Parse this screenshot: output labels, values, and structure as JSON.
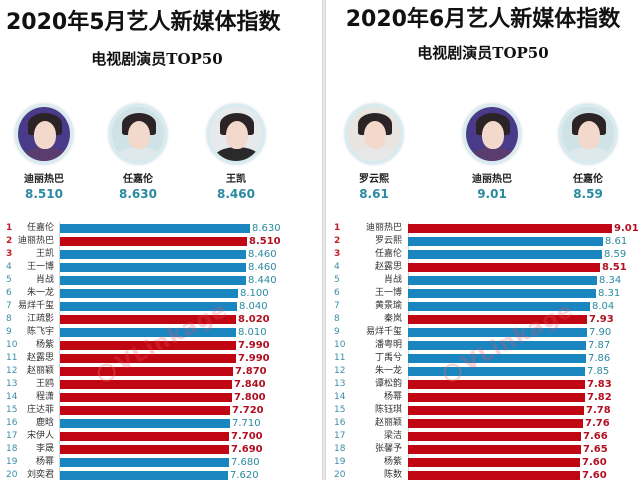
{
  "left_panel": {
    "title": "2020年5月艺人新媒体指数",
    "subtitle": "电视剧演员TOP50",
    "top3": [
      {
        "name": "迪丽热巴",
        "score": "8.510",
        "position": "left"
      },
      {
        "name": "任嘉伦",
        "score": "8.630",
        "position": "center"
      },
      {
        "name": "王凯",
        "score": "8.460",
        "position": "right"
      }
    ],
    "watermark": "VLinkage"
  },
  "right_panel": {
    "title": "2020年6月艺人新媒体指数",
    "subtitle": "电视剧演员TOP50",
    "top3": [
      {
        "name": "罗云熙",
        "score": "8.61",
        "position": "left"
      },
      {
        "name": "迪丽热巴",
        "score": "9.01",
        "position": "center"
      },
      {
        "name": "任嘉伦",
        "score": "8.59",
        "position": "right"
      }
    ],
    "watermark": "VLinkage"
  },
  "colors": {
    "blue_bar": "#1a86c0",
    "red_bar": "#c00612",
    "score_teal": "#2a8aa0",
    "rank_red": "#c0202a"
  },
  "chart_data": [
    {
      "type": "bar",
      "orientation": "horizontal",
      "title": "2020年5月艺人新媒体指数",
      "subtitle": "电视剧演员TOP50",
      "ranks": [
        "1",
        "2",
        "3",
        "4",
        "5",
        "6",
        "7",
        "8",
        "9",
        "10",
        "11",
        "12",
        "13",
        "14",
        "15",
        "16",
        "17",
        "18",
        "19",
        "20"
      ],
      "categories": [
        "任嘉伦",
        "迪丽热巴",
        "王凯",
        "王一博",
        "肖战",
        "朱一龙",
        "易烊千玺",
        "江疏影",
        "陈飞宇",
        "杨紫",
        "赵露思",
        "赵丽颖",
        "王鸥",
        "程潇",
        "庄达菲",
        "鹿晗",
        "宋伊人",
        "李晟",
        "杨幂",
        "刘奕君"
      ],
      "values": [
        8.63,
        8.51,
        8.46,
        8.46,
        8.44,
        8.1,
        8.04,
        8.02,
        8.01,
        7.99,
        7.99,
        7.87,
        7.84,
        7.8,
        7.72,
        7.71,
        7.7,
        7.69,
        7.68,
        7.62
      ],
      "labels": [
        "8.630",
        "8.510",
        "8.460",
        "8.460",
        "8.440",
        "8.100",
        "8.040",
        "8.020",
        "8.010",
        "7.990",
        "7.990",
        "7.870",
        "7.840",
        "7.800",
        "7.720",
        "7.710",
        "7.700",
        "7.690",
        "7.680",
        "7.620"
      ],
      "bar_colors": [
        "blue",
        "red",
        "blue",
        "blue",
        "blue",
        "blue",
        "blue",
        "red",
        "blue",
        "red",
        "red",
        "red",
        "red",
        "red",
        "red",
        "blue",
        "red",
        "red",
        "blue",
        "blue"
      ],
      "legend": "blue = male, red = female (implied by color)",
      "xlim": [
        0,
        9
      ],
      "grid": false
    },
    {
      "type": "bar",
      "orientation": "horizontal",
      "title": "2020年6月艺人新媒体指数",
      "subtitle": "电视剧演员TOP50",
      "ranks": [
        "1",
        "2",
        "3",
        "4",
        "5",
        "6",
        "7",
        "8",
        "9",
        "10",
        "11",
        "12",
        "13",
        "14",
        "15",
        "16",
        "17",
        "18",
        "19",
        "20"
      ],
      "categories": [
        "迪丽热巴",
        "罗云熙",
        "任嘉伦",
        "赵露思",
        "肖战",
        "王一博",
        "黄景瑜",
        "秦岚",
        "易烊千玺",
        "潘粤明",
        "丁禹兮",
        "朱一龙",
        "谭松韵",
        "杨幂",
        "陈钰琪",
        "赵丽颖",
        "梁洁",
        "张馨予",
        "杨紫",
        "陈数"
      ],
      "values": [
        9.01,
        8.61,
        8.59,
        8.51,
        8.34,
        8.31,
        8.04,
        7.93,
        7.9,
        7.87,
        7.86,
        7.85,
        7.83,
        7.82,
        7.78,
        7.76,
        7.66,
        7.65,
        7.6,
        7.6
      ],
      "labels": [
        "9.01",
        "8.61",
        "8.59",
        "8.51",
        "8.34",
        "8.31",
        "8.04",
        "7.93",
        "7.90",
        "7.87",
        "7.86",
        "7.85",
        "7.83",
        "7.82",
        "7.78",
        "7.76",
        "7.66",
        "7.65",
        "7.60",
        "7.60"
      ],
      "bar_colors": [
        "red",
        "blue",
        "blue",
        "red",
        "blue",
        "blue",
        "blue",
        "red",
        "blue",
        "blue",
        "blue",
        "blue",
        "red",
        "red",
        "red",
        "red",
        "red",
        "red",
        "red",
        "red"
      ],
      "xlim": [
        0,
        9.2
      ],
      "grid": false
    }
  ]
}
